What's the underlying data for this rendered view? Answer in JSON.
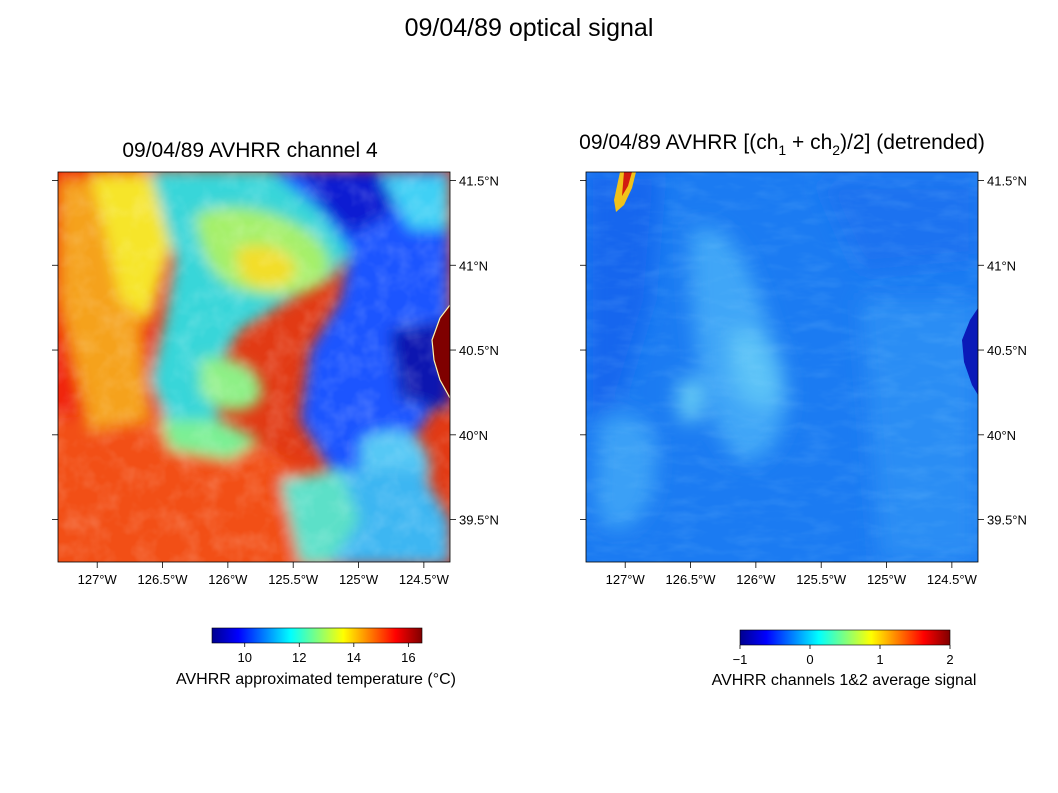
{
  "page": {
    "title": "09/04/89 optical signal"
  },
  "chart_data": [
    {
      "type": "heatmap",
      "title": "09/04/89 AVHRR channel 4",
      "x_ticks": [
        "127°W",
        "126.5°W",
        "126°W",
        "125.5°W",
        "125°W",
        "124.5°W"
      ],
      "x_tick_values": [
        -127,
        -126.5,
        -126,
        -125.5,
        -125,
        -124.5
      ],
      "y_ticks": [
        "41.5°N",
        "41°N",
        "40.5°N",
        "40°N",
        "39.5°N"
      ],
      "y_tick_values": [
        41.5,
        41,
        40.5,
        40,
        39.5
      ],
      "xlim": [
        -127.3,
        -124.3
      ],
      "ylim": [
        39.25,
        41.55
      ],
      "colorbar": {
        "label": "AVHRR approximated temperature (°C)",
        "ticks": [
          "10",
          "12",
          "14",
          "16"
        ],
        "tick_values": [
          10,
          12,
          14,
          16
        ],
        "range": [
          8.8,
          16.5
        ],
        "colormap": "jet"
      }
    },
    {
      "type": "heatmap",
      "title": "09/04/89 AVHRR [(ch1 + ch2)/2] (detrended)",
      "title_parts": [
        "09/04/89 AVHRR [(ch",
        "1",
        " + ch",
        "2",
        ")/2] (detrended)"
      ],
      "x_ticks": [
        "127°W",
        "126.5°W",
        "126°W",
        "125.5°W",
        "125°W",
        "124.5°W"
      ],
      "x_tick_values": [
        -127,
        -126.5,
        -126,
        -125.5,
        -125,
        -124.5
      ],
      "y_ticks": [
        "41.5°N",
        "41°N",
        "40.5°N",
        "40°N",
        "39.5°N"
      ],
      "y_tick_values": [
        41.5,
        41,
        40.5,
        40,
        39.5
      ],
      "xlim": [
        -127.3,
        -124.3
      ],
      "ylim": [
        39.25,
        41.55
      ],
      "colorbar": {
        "label": "AVHRR channels 1&2 average signal",
        "ticks": [
          "−1",
          "0",
          "1",
          "2"
        ],
        "tick_values": [
          -1,
          0,
          1,
          2
        ],
        "range": [
          -1,
          2
        ],
        "colormap": "jet"
      }
    }
  ]
}
